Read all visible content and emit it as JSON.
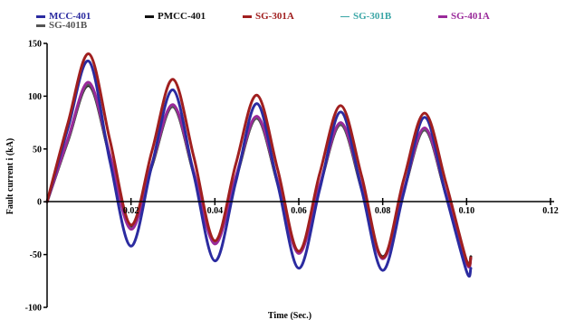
{
  "chart_data": {
    "type": "line",
    "title": "",
    "xlabel": "Time (Sec.)",
    "ylabel": "Fault current i (kA)",
    "xlim": [
      0,
      0.12
    ],
    "ylim": [
      -100,
      150
    ],
    "xticks": [
      0.02,
      0.04,
      0.06,
      0.08,
      0.1,
      0.12
    ],
    "xtick_labels": [
      "0.02",
      "0.04",
      "0.06",
      "0.08",
      "0.10",
      "0.12"
    ],
    "yticks": [
      -100,
      -50,
      0,
      50,
      100,
      150
    ],
    "ytick_labels": [
      "-100",
      "-50",
      "0",
      "50",
      "100",
      "150"
    ],
    "y_zero_label": "0",
    "legend_position": "top",
    "grid": false,
    "series": [
      {
        "name": "MCC-401",
        "color": "#2b2ba0",
        "dashed": false,
        "x": [
          0,
          0.005,
          0.01,
          0.015,
          0.02,
          0.025,
          0.03,
          0.035,
          0.04,
          0.045,
          0.05,
          0.055,
          0.06,
          0.065,
          0.07,
          0.075,
          0.08,
          0.085,
          0.09,
          0.095,
          0.1,
          0.101
        ],
        "y": [
          0,
          70,
          133,
          38,
          -42,
          35,
          106,
          25,
          -56,
          19,
          93,
          16,
          -63,
          12,
          85,
          11,
          -65,
          8,
          80,
          7,
          -66,
          -63
        ]
      },
      {
        "name": "PMCC-401",
        "color": "#111111",
        "dashed": false,
        "x": [
          0,
          0.005,
          0.01,
          0.015,
          0.02,
          0.025,
          0.03,
          0.035,
          0.04,
          0.045,
          0.05,
          0.055,
          0.06,
          0.065,
          0.07,
          0.075,
          0.08,
          0.085,
          0.09,
          0.095,
          0.1,
          0.101
        ],
        "y": [
          0,
          58,
          110,
          42,
          -24,
          34,
          90,
          26,
          -38,
          22,
          79,
          17,
          -47,
          15,
          73,
          12,
          -52,
          10,
          68,
          8,
          -56,
          -52
        ]
      },
      {
        "name": "SG-301A",
        "color": "#a01f1f",
        "dashed": false,
        "x": [
          0,
          0.005,
          0.01,
          0.015,
          0.02,
          0.025,
          0.03,
          0.035,
          0.04,
          0.045,
          0.05,
          0.055,
          0.06,
          0.065,
          0.07,
          0.075,
          0.08,
          0.085,
          0.09,
          0.095,
          0.1,
          0.101
        ],
        "y": [
          0,
          75,
          140,
          58,
          -22,
          48,
          116,
          42,
          -37,
          36,
          101,
          30,
          -47,
          27,
          91,
          24,
          -53,
          21,
          84,
          19,
          -56,
          -53
        ]
      },
      {
        "name": "SG-301B",
        "color": "#3aa6a6",
        "dashed": true,
        "x": [
          0,
          0.005,
          0.01,
          0.015,
          0.02,
          0.025,
          0.03,
          0.035,
          0.04,
          0.045,
          0.05,
          0.055,
          0.06,
          0.065,
          0.07,
          0.075,
          0.08,
          0.085,
          0.09,
          0.095,
          0.1,
          0.101
        ],
        "y": [
          0,
          59,
          112,
          43,
          -25,
          35,
          91,
          27,
          -39,
          23,
          80,
          18,
          -48,
          16,
          74,
          13,
          -53,
          11,
          69,
          9,
          -57,
          -53
        ]
      },
      {
        "name": "SG-401A",
        "color": "#9a2a9a",
        "dashed": false,
        "x": [
          0,
          0.005,
          0.01,
          0.015,
          0.02,
          0.025,
          0.03,
          0.035,
          0.04,
          0.045,
          0.05,
          0.055,
          0.06,
          0.065,
          0.07,
          0.075,
          0.08,
          0.085,
          0.09,
          0.095,
          0.1,
          0.101
        ],
        "y": [
          0,
          60,
          113,
          44,
          -26,
          36,
          92,
          28,
          -40,
          24,
          81,
          19,
          -49,
          16,
          75,
          14,
          -54,
          11,
          70,
          9,
          -58,
          -54
        ]
      },
      {
        "name": "SG-401B",
        "color": "#555555",
        "dashed": false,
        "x": [
          0,
          0.005,
          0.01,
          0.015,
          0.02,
          0.025,
          0.03,
          0.035,
          0.04,
          0.045,
          0.05,
          0.055,
          0.06,
          0.065,
          0.07,
          0.075,
          0.08,
          0.085,
          0.09,
          0.095,
          0.1,
          0.101
        ],
        "y": [
          0,
          58,
          111,
          42,
          -25,
          34,
          90,
          26,
          -39,
          22,
          79,
          17,
          -48,
          15,
          73,
          12,
          -53,
          10,
          68,
          8,
          -57,
          -53
        ]
      }
    ]
  }
}
